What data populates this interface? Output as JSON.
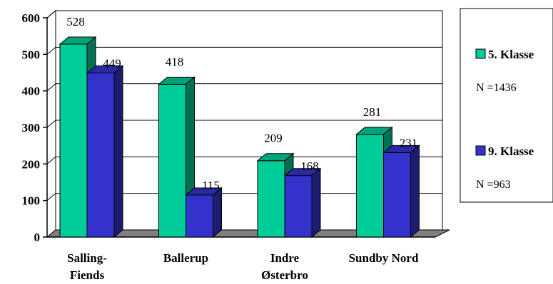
{
  "chart_data": {
    "type": "bar",
    "categories": [
      "Salling-\nFiends",
      "Ballerup",
      "Indre\nØsterbro",
      "Sundby Nord"
    ],
    "series": [
      {
        "name": "5. Klasse",
        "values": [
          528,
          418,
          209,
          281
        ],
        "color": "#00CC99",
        "note": "N =1436"
      },
      {
        "name": "9. Klasse",
        "values": [
          449,
          115,
          168,
          231
        ],
        "color": "#3333CC",
        "note": "N =963"
      }
    ],
    "ylim": [
      0,
      600
    ],
    "yticks": [
      0,
      100,
      200,
      300,
      400,
      500,
      600
    ],
    "title": "",
    "xlabel": "",
    "ylabel": "",
    "grid": true,
    "legend": "right"
  }
}
